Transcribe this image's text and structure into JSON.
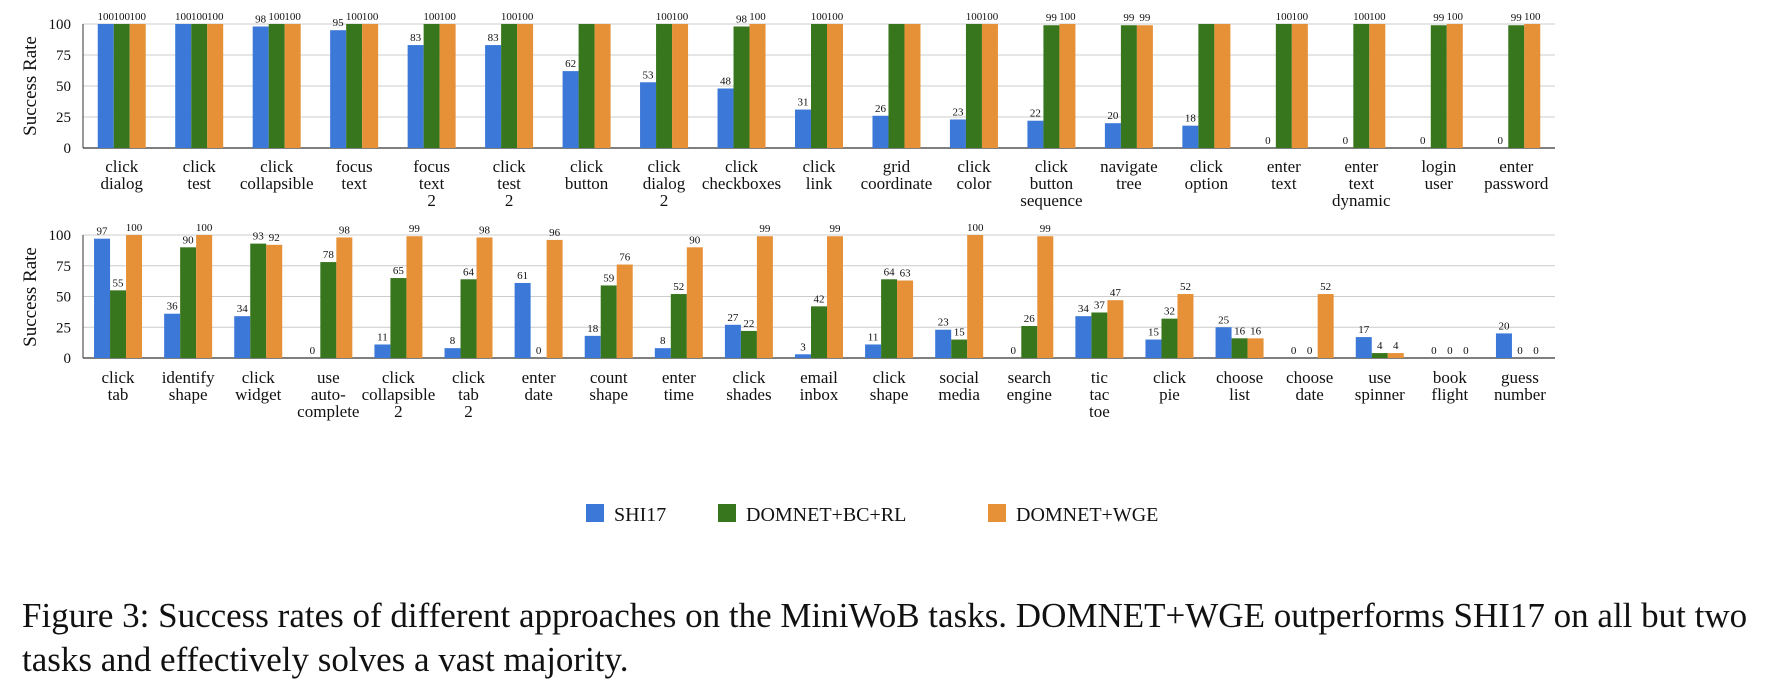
{
  "colors": {
    "shi17": "#3C78D8",
    "bcrl": "#38761D",
    "wge": "#E69138",
    "grid": "#cccccc",
    "axis": "#333333"
  },
  "legend": {
    "shi17": "SHI17",
    "bcrl": "DOMNET+BC+RL",
    "wge": "DOMNET+WGE"
  },
  "caption": {
    "text": "Figure 3:   Success rates of different approaches on the MiniWoB tasks. DOMNET+WGE outperforms SHI17 on all but two tasks and effectively solves a vast majority."
  },
  "chart_data": [
    {
      "type": "bar",
      "ylabel": "Success Rate",
      "ylim": [
        0,
        100
      ],
      "yticks": [
        0,
        25,
        50,
        75,
        100
      ],
      "grid": true,
      "categories": [
        [
          "click",
          "dialog"
        ],
        [
          "click",
          "test"
        ],
        [
          "click",
          "collapsible"
        ],
        [
          "focus",
          "text"
        ],
        [
          "focus",
          "text",
          "2"
        ],
        [
          "click",
          "test",
          "2"
        ],
        [
          "click",
          "button"
        ],
        [
          "click",
          "dialog",
          "2"
        ],
        [
          "click",
          "checkboxes"
        ],
        [
          "click",
          "link"
        ],
        [
          "grid",
          "coordinate"
        ],
        [
          "click",
          "color"
        ],
        [
          "click",
          "button",
          "sequence"
        ],
        [
          "navigate",
          "tree"
        ],
        [
          "click",
          "option"
        ],
        [
          "enter",
          "text"
        ],
        [
          "enter",
          "text",
          "dynamic"
        ],
        [
          "login",
          "user"
        ],
        [
          "enter",
          "password"
        ]
      ],
      "series": [
        {
          "name": "SHI17",
          "values": [
            100,
            100,
            98,
            95,
            83,
            83,
            62,
            53,
            48,
            31,
            26,
            23,
            22,
            20,
            18,
            0,
            0,
            0,
            0
          ]
        },
        {
          "name": "DOMNET+BC+RL",
          "values": [
            100,
            100,
            100,
            100,
            100,
            100,
            100,
            100,
            98,
            100,
            100,
            100,
            99,
            99,
            100,
            100,
            100,
            99,
            99
          ]
        },
        {
          "name": "DOMNET+WGE",
          "values": [
            100,
            100,
            100,
            100,
            100,
            100,
            100,
            100,
            100,
            100,
            100,
            100,
            100,
            99,
            100,
            100,
            100,
            100,
            100
          ]
        }
      ],
      "data_labels": [
        [
          "100",
          "100",
          "98",
          "95",
          "83",
          "83",
          "62",
          "53",
          "48",
          "31",
          "26",
          "23",
          "22",
          "20",
          "18",
          "0",
          "0",
          "0",
          "0"
        ],
        [
          "100",
          "100",
          "100",
          "100",
          "100",
          "100",
          "",
          "100",
          "98",
          "100",
          "",
          "100",
          "99",
          "99",
          "",
          "100",
          "100",
          "99",
          "99"
        ],
        [
          "100",
          "100",
          "100",
          "100",
          "100",
          "100",
          "",
          "100",
          "100",
          "100",
          "",
          "100",
          "100",
          "99",
          "",
          "100",
          "100",
          "100",
          "100"
        ]
      ]
    },
    {
      "type": "bar",
      "ylabel": "Success Rate",
      "ylim": [
        0,
        100
      ],
      "yticks": [
        0,
        25,
        50,
        75,
        100
      ],
      "grid": true,
      "categories": [
        [
          "click",
          "tab"
        ],
        [
          "identify",
          "shape"
        ],
        [
          "click",
          "widget"
        ],
        [
          "use",
          "auto-",
          "complete"
        ],
        [
          "click",
          "collapsible",
          "2"
        ],
        [
          "click",
          "tab",
          "2"
        ],
        [
          "enter",
          "date"
        ],
        [
          "count",
          "shape"
        ],
        [
          "enter",
          "time"
        ],
        [
          "click",
          "shades"
        ],
        [
          "email",
          "inbox"
        ],
        [
          "click",
          "shape"
        ],
        [
          "social",
          "media"
        ],
        [
          "search",
          "engine"
        ],
        [
          "tic",
          "tac",
          "toe"
        ],
        [
          "click",
          "pie"
        ],
        [
          "choose",
          "list"
        ],
        [
          "choose",
          "date"
        ],
        [
          "use",
          "spinner"
        ],
        [
          "book",
          "flight"
        ],
        [
          "guess",
          "number"
        ]
      ],
      "series": [
        {
          "name": "SHI17",
          "values": [
            97,
            36,
            34,
            0,
            11,
            8,
            61,
            18,
            8,
            27,
            3,
            11,
            23,
            0,
            34,
            15,
            25,
            0,
            17,
            0,
            20
          ]
        },
        {
          "name": "DOMNET+BC+RL",
          "values": [
            55,
            90,
            93,
            78,
            65,
            64,
            0,
            59,
            52,
            22,
            42,
            64,
            15,
            26,
            37,
            32,
            16,
            0,
            4,
            0,
            0
          ]
        },
        {
          "name": "DOMNET+WGE",
          "values": [
            100,
            100,
            92,
            98,
            99,
            98,
            96,
            76,
            90,
            99,
            99,
            63,
            100,
            99,
            47,
            52,
            16,
            52,
            4,
            0,
            0
          ]
        }
      ],
      "data_labels": [
        [
          "97",
          "36",
          "34",
          "0",
          "11",
          "8",
          "61",
          "18",
          "8",
          "27",
          "3",
          "11",
          "23",
          "0",
          "34",
          "15",
          "25",
          "0",
          "17",
          "0",
          "20"
        ],
        [
          "55",
          "90",
          "93",
          "78",
          "65",
          "64",
          "0",
          "59",
          "52",
          "22",
          "42",
          "64",
          "15",
          "26",
          "37",
          "32",
          "16",
          "0",
          "4",
          "0",
          "0"
        ],
        [
          "100",
          "100",
          "92",
          "98",
          "99",
          "98",
          "96",
          "76",
          "90",
          "99",
          "99",
          "63",
          "100",
          "99",
          "47",
          "52",
          "16",
          "52",
          "4",
          "0",
          "0"
        ]
      ]
    }
  ]
}
